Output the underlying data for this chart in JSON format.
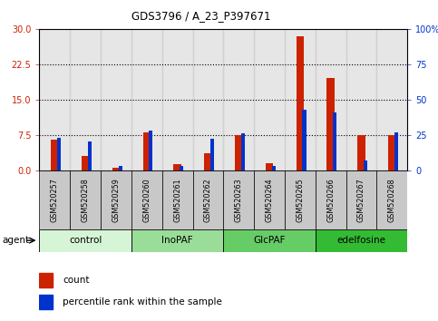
{
  "title": "GDS3796 / A_23_P397671",
  "categories": [
    "GSM520257",
    "GSM520258",
    "GSM520259",
    "GSM520260",
    "GSM520261",
    "GSM520262",
    "GSM520263",
    "GSM520264",
    "GSM520265",
    "GSM520266",
    "GSM520267",
    "GSM520268"
  ],
  "count_values": [
    6.5,
    3.0,
    0.5,
    8.0,
    1.2,
    3.5,
    7.5,
    1.5,
    28.5,
    19.5,
    7.5,
    7.5
  ],
  "percentile_values": [
    23,
    20,
    3,
    28,
    3,
    22,
    26,
    3,
    43,
    41,
    7,
    27
  ],
  "agent_groups": [
    {
      "label": "control",
      "start": 0,
      "end": 3,
      "color": "#d6f5d6"
    },
    {
      "label": "InoPAF",
      "start": 3,
      "end": 6,
      "color": "#99dd99"
    },
    {
      "label": "GlcPAF",
      "start": 6,
      "end": 9,
      "color": "#66cc66"
    },
    {
      "label": "edelfosine",
      "start": 9,
      "end": 12,
      "color": "#33bb33"
    }
  ],
  "ylim_left": [
    0,
    30
  ],
  "ylim_right": [
    0,
    100
  ],
  "yticks_left": [
    0,
    7.5,
    15,
    22.5,
    30
  ],
  "yticks_right": [
    0,
    25,
    50,
    75,
    100
  ],
  "ytick_labels_right": [
    "0",
    "25",
    "50",
    "75",
    "100%"
  ],
  "bar_color_red": "#cc2200",
  "bar_color_blue": "#0033cc",
  "background_color": "#ffffff",
  "cell_bg": "#c8c8c8",
  "agent_label": "agent",
  "legend_count": "count",
  "legend_percentile": "percentile rank within the sample"
}
